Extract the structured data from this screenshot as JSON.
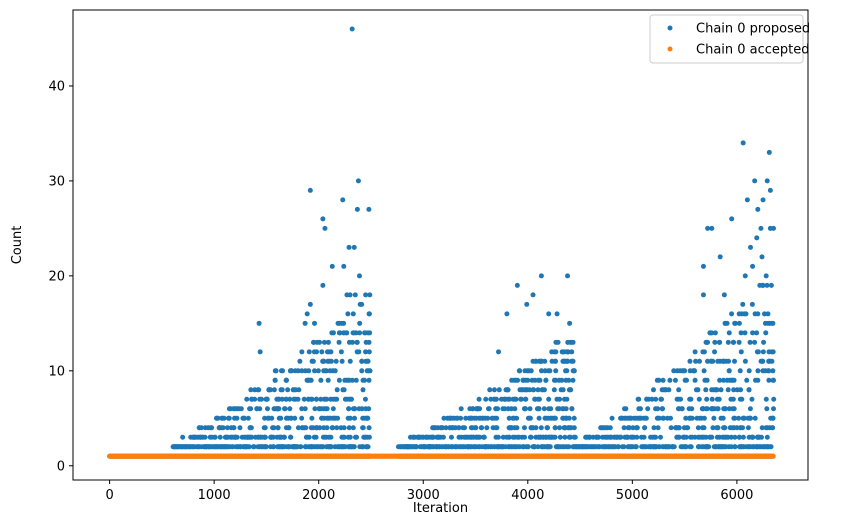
{
  "chart_data": {
    "type": "scatter",
    "title": "",
    "xlabel": "Iteration",
    "ylabel": "Count",
    "xlim": [
      -350,
      6680
    ],
    "ylim": [
      -1.5,
      48
    ],
    "xticks": [
      0,
      1000,
      2000,
      3000,
      4000,
      5000,
      6000
    ],
    "yticks": [
      0,
      10,
      20,
      30,
      40
    ],
    "grid": false,
    "legend_position": "top-right",
    "series": [
      {
        "name": "Chain 0 proposed",
        "color": "#1f77b4",
        "generator": {
          "x_range": [
            0,
            6350
          ],
          "step": 9,
          "baseline": 1,
          "gap": [
            2500,
            2760
          ],
          "regimes": [
            {
              "x": [
                0,
                600
              ],
              "max": 1
            },
            {
              "x": [
                600,
                2490
              ],
              "max_start": 2,
              "max_end": 18
            },
            {
              "x": [
                2760,
                4450
              ],
              "max_start": 2,
              "max_end": 14
            },
            {
              "x": [
                4450,
                6350
              ],
              "max_start": 2,
              "max_end": 20
            }
          ]
        },
        "points": [
          [
            2320,
            46
          ],
          [
            6060,
            34
          ],
          [
            6310,
            33
          ],
          [
            2380,
            30
          ],
          [
            6170,
            30
          ],
          [
            6290,
            30
          ],
          [
            6320,
            29
          ],
          [
            1920,
            29
          ],
          [
            2230,
            28
          ],
          [
            6100,
            28
          ],
          [
            6250,
            28
          ],
          [
            2370,
            27
          ],
          [
            2480,
            27
          ],
          [
            6200,
            27
          ],
          [
            5950,
            26
          ],
          [
            2040,
            26
          ],
          [
            5720,
            25
          ],
          [
            5760,
            25
          ],
          [
            2060,
            25
          ],
          [
            6230,
            25
          ],
          [
            6320,
            25
          ],
          [
            6350,
            25
          ],
          [
            6190,
            24
          ],
          [
            2290,
            23
          ],
          [
            2340,
            23
          ],
          [
            6130,
            23
          ],
          [
            6240,
            22
          ],
          [
            5840,
            22
          ],
          [
            6150,
            21
          ],
          [
            2130,
            21
          ],
          [
            2240,
            21
          ],
          [
            5680,
            21
          ],
          [
            6280,
            20
          ],
          [
            2390,
            20
          ],
          [
            4130,
            20
          ],
          [
            4380,
            20
          ],
          [
            6080,
            20
          ],
          [
            2040,
            19
          ],
          [
            3900,
            19
          ],
          [
            6330,
            19
          ],
          [
            2270,
            18
          ],
          [
            2300,
            18
          ],
          [
            2350,
            18
          ],
          [
            4050,
            18
          ],
          [
            5680,
            18
          ],
          [
            5880,
            18
          ],
          [
            1920,
            17
          ],
          [
            3990,
            17
          ],
          [
            4200,
            16
          ],
          [
            1890,
            16
          ],
          [
            3800,
            16
          ],
          [
            4280,
            16
          ],
          [
            1430,
            15
          ],
          [
            1870,
            15
          ],
          [
            1960,
            15
          ],
          [
            4400,
            15
          ],
          [
            1440,
            12
          ],
          [
            3720,
            12
          ]
        ]
      },
      {
        "name": "Chain 0 accepted",
        "color": "#ff7f0e",
        "generator": {
          "x_range": [
            0,
            6350
          ],
          "step": 6,
          "value": 1
        },
        "points": []
      }
    ]
  }
}
